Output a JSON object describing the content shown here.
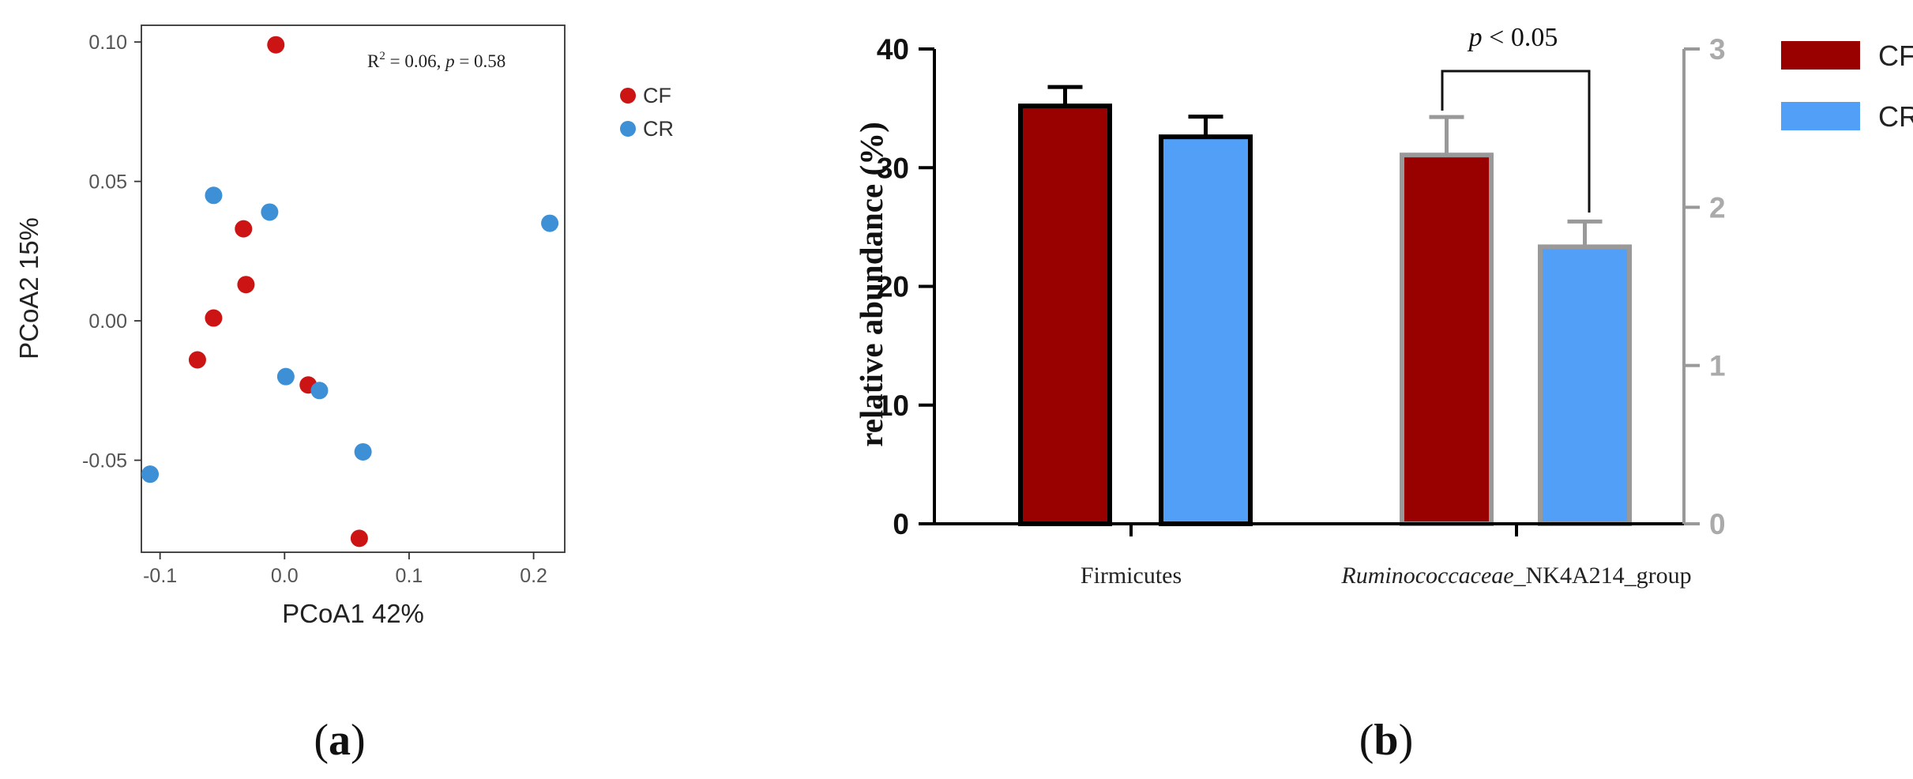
{
  "chart_data": [
    {
      "type": "scatter",
      "panel_label": "(a)",
      "xlabel": "PCoA1 42%",
      "ylabel": "PCoA2 15%",
      "annotation": {
        "r_part": "R",
        "sup": "2",
        "eq1": " = 0.06, ",
        "p": "p",
        "eq2": " = 0.58"
      },
      "xlim": [
        -0.115,
        0.225
      ],
      "ylim": [
        -0.083,
        0.106
      ],
      "xticks": [
        -0.1,
        0.0,
        0.1,
        0.2
      ],
      "xtick_labels": [
        "-0.1",
        "0.0",
        "0.1",
        "0.2"
      ],
      "yticks": [
        -0.05,
        0.0,
        0.05,
        0.1
      ],
      "ytick_labels": [
        "-0.05",
        "0.00",
        "0.05",
        "0.10"
      ],
      "grid": false,
      "legend_position": "right",
      "series": [
        {
          "name": "CF",
          "color": "#cc1414",
          "points": [
            [
              -0.007,
              0.099
            ],
            [
              -0.033,
              0.033
            ],
            [
              -0.031,
              0.013
            ],
            [
              -0.057,
              0.001
            ],
            [
              -0.07,
              -0.014
            ],
            [
              0.019,
              -0.023
            ],
            [
              0.06,
              -0.078
            ]
          ]
        },
        {
          "name": "CR",
          "color": "#3d8fd6",
          "points": [
            [
              -0.057,
              0.045
            ],
            [
              -0.012,
              0.039
            ],
            [
              0.213,
              0.035
            ],
            [
              0.001,
              -0.02
            ],
            [
              0.028,
              -0.025
            ],
            [
              0.063,
              -0.047
            ],
            [
              -0.108,
              -0.055
            ]
          ]
        }
      ]
    },
    {
      "type": "bar",
      "panel_label": "(b)",
      "ylabel": "relative abundance (%)",
      "categories": [
        "Firmicutes",
        "Ruminococcaceae_NK4A214_group"
      ],
      "category_label_parts": [
        {
          "italic": "",
          "normal": "Firmicutes"
        },
        {
          "italic": "Ruminococcaceae",
          "normal": "_NK4A214_group"
        }
      ],
      "ylim": [
        0,
        40
      ],
      "yticks": [
        0,
        10,
        20,
        30,
        40
      ],
      "ytick_labels": [
        "0",
        "10",
        "20",
        "30",
        "40"
      ],
      "y2lim": [
        0,
        3
      ],
      "y2ticks": [
        0,
        1,
        2,
        3
      ],
      "y2tick_labels": [
        "0",
        "1",
        "2",
        "3"
      ],
      "axis_notes": {
        "Firmicutes": "left axis",
        "Ruminococcaceae_NK4A214_group": "right axis"
      },
      "series": [
        {
          "name": "CF",
          "color": "#990000",
          "values": [
            35.2,
            2.33
          ],
          "errors": [
            1.6,
            0.24
          ]
        },
        {
          "name": "CR",
          "color": "#529ff7",
          "values": [
            32.6,
            1.75
          ],
          "errors": [
            1.7,
            0.16
          ]
        }
      ],
      "significance": {
        "label_p": "p",
        "label_rest": " < 0.05",
        "between": [
          "CF",
          "CR"
        ],
        "category": "Ruminococcaceae_NK4A214_group"
      }
    }
  ]
}
